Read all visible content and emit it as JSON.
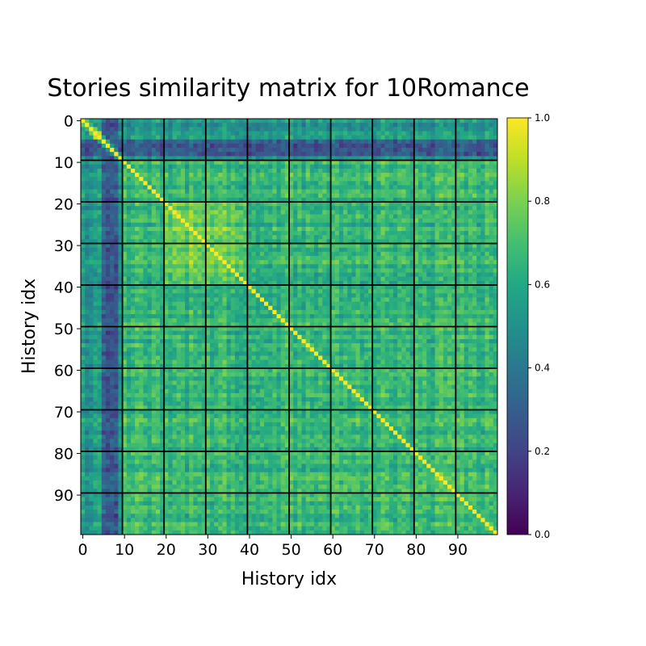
{
  "chart_data": {
    "type": "heatmap",
    "title": "Stories similarity matrix for 10Romance",
    "xlabel": "History idx",
    "ylabel": "History idx",
    "n": 100,
    "x_ticks": [
      "0",
      "10",
      "20",
      "30",
      "40",
      "50",
      "60",
      "70",
      "80",
      "90"
    ],
    "y_ticks": [
      "0",
      "10",
      "20",
      "30",
      "40",
      "50",
      "60",
      "70",
      "80",
      "90"
    ],
    "x_tick_values": [
      0,
      10,
      20,
      30,
      40,
      50,
      60,
      70,
      80,
      90
    ],
    "y_tick_values": [
      0,
      10,
      20,
      30,
      40,
      50,
      60,
      70,
      80,
      90
    ],
    "group_boundaries": [
      9.5,
      19.5,
      29.5,
      39.5,
      49.5,
      59.5,
      69.5,
      79.5,
      89.5
    ],
    "color_range": [
      0.0,
      1.0
    ],
    "colormap": "viridis",
    "colorbar_ticks": [
      "0.0",
      "0.2",
      "0.4",
      "0.6",
      "0.8",
      "1.0"
    ],
    "colorbar_tick_values": [
      0.0,
      0.2,
      0.4,
      0.6,
      0.8,
      1.0
    ],
    "diagonal_value": 1.0,
    "description_of_pattern": {
      "low_similarity_columns": [
        5,
        6,
        7,
        8
      ],
      "low_similarity_rows": [
        5,
        6,
        7,
        8
      ],
      "high_similarity_block": [
        20,
        40
      ]
    }
  },
  "colors": {
    "grid_line": "#000000",
    "background": "#ffffff"
  }
}
